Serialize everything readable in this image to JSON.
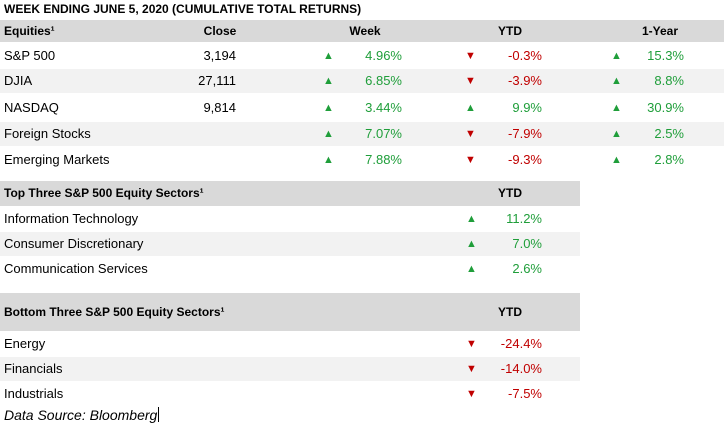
{
  "title": "WEEK ENDING JUNE 5, 2020 (CUMULATIVE TOTAL RETURNS)",
  "equities": {
    "headers": {
      "name": "Equities¹",
      "close": "Close",
      "week": "Week",
      "ytd": "YTD",
      "year": "1-Year"
    },
    "rows": [
      {
        "name": "S&P 500",
        "close": "3,194",
        "week": "4.96%",
        "week_dir": "up",
        "ytd": "-0.3%",
        "ytd_dir": "down",
        "year": "15.3%",
        "year_dir": "up"
      },
      {
        "name": "DJIA",
        "close": "27,111",
        "week": "6.85%",
        "week_dir": "up",
        "ytd": "-3.9%",
        "ytd_dir": "down",
        "year": "8.8%",
        "year_dir": "up"
      },
      {
        "name": "NASDAQ",
        "close": "9,814",
        "week": "3.44%",
        "week_dir": "up",
        "ytd": "9.9%",
        "ytd_dir": "up",
        "year": "30.9%",
        "year_dir": "up"
      },
      {
        "name": "Foreign Stocks",
        "close": "",
        "week": "7.07%",
        "week_dir": "up",
        "ytd": "-7.9%",
        "ytd_dir": "down",
        "year": "2.5%",
        "year_dir": "up"
      },
      {
        "name": "Emerging Markets",
        "close": "",
        "week": "7.88%",
        "week_dir": "up",
        "ytd": "-9.3%",
        "ytd_dir": "down",
        "year": "2.8%",
        "year_dir": "up"
      }
    ]
  },
  "top_sectors": {
    "headers": {
      "name": "Top Three S&P 500 Equity Sectors¹",
      "ytd": "YTD"
    },
    "rows": [
      {
        "name": "Information Technology",
        "ytd": "11.2%",
        "dir": "up"
      },
      {
        "name": "Consumer Discretionary",
        "ytd": "7.0%",
        "dir": "up"
      },
      {
        "name": "Communication Services",
        "ytd": "2.6%",
        "dir": "up"
      }
    ]
  },
  "bottom_sectors": {
    "headers": {
      "name": "Bottom Three S&P 500 Equity Sectors¹",
      "ytd": "YTD"
    },
    "rows": [
      {
        "name": "Energy",
        "ytd": "-24.4%",
        "dir": "down"
      },
      {
        "name": "Financials",
        "ytd": "-14.0%",
        "dir": "down"
      },
      {
        "name": "Industrials",
        "ytd": "-7.5%",
        "dir": "down"
      }
    ]
  },
  "source": "Data Source: Bloomberg",
  "colors": {
    "up": "#1f9e3a",
    "down": "#c00000",
    "header_bg": "#d9d9d9",
    "shade_bg": "#f2f2f2"
  },
  "icons": {
    "up": "up-triangle-icon",
    "down": "down-triangle-icon"
  }
}
